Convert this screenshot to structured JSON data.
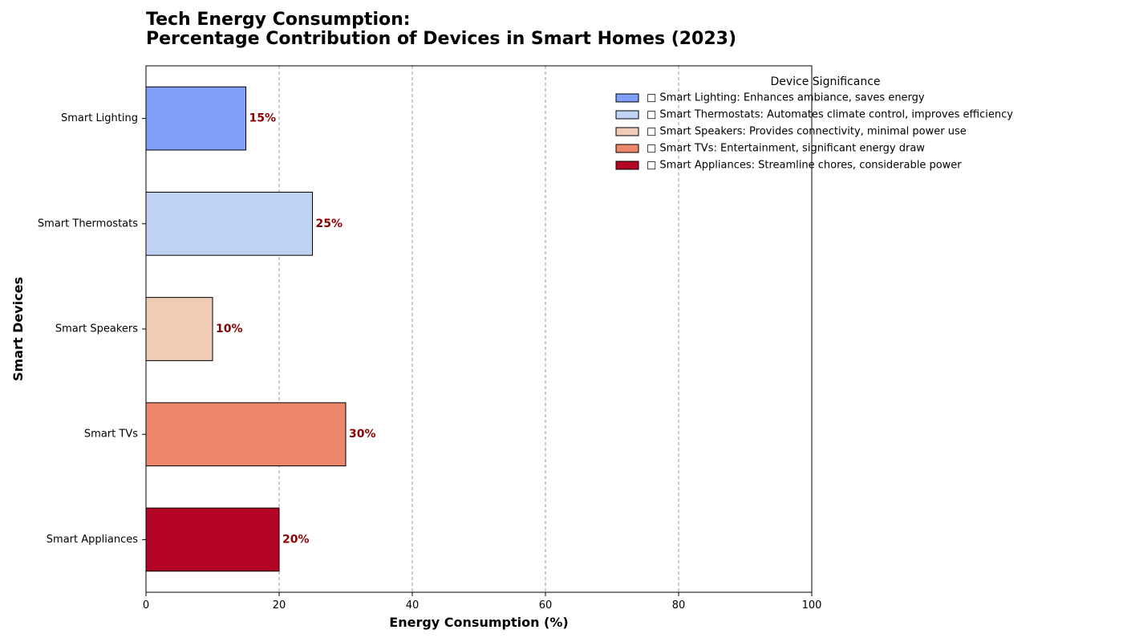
{
  "chart_data": {
    "type": "bar",
    "orientation": "horizontal",
    "title_lines": [
      "Tech Energy Consumption:",
      "Percentage Contribution of Devices in Smart Homes (2023)"
    ],
    "xlabel": "Energy Consumption (%)",
    "ylabel": "Smart Devices",
    "xlim": [
      0,
      100
    ],
    "xticks": [
      0,
      20,
      40,
      60,
      80,
      100
    ],
    "grid": "x-dashed",
    "categories": [
      "Smart Lighting",
      "Smart Thermostats",
      "Smart Speakers",
      "Smart TVs",
      "Smart Appliances"
    ],
    "values": [
      15,
      25,
      10,
      30,
      20
    ],
    "data_labels": [
      "15%",
      "25%",
      "10%",
      "30%",
      "20%"
    ],
    "colors": [
      "#7f9ff8",
      "#bfd4f5",
      "#f0cbb6",
      "#ed876b",
      "#b40426"
    ],
    "data_label_color": "#8b0000",
    "legend": {
      "title": "Device Significance",
      "placement": "top-right",
      "entries": [
        "□ Smart Lighting: Enhances ambiance, saves energy",
        "□ Smart Thermostats: Automates climate control, improves efficiency",
        "□ Smart Speakers: Provides connectivity, minimal power use",
        "□ Smart TVs: Entertainment, significant energy draw",
        "□ Smart Appliances: Streamline chores, considerable power"
      ]
    }
  }
}
